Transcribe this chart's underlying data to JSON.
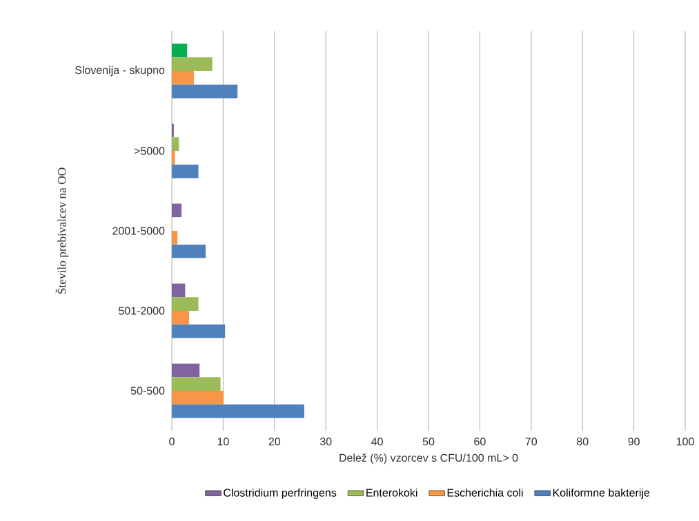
{
  "chart_data": {
    "type": "bar",
    "orientation": "horizontal",
    "xlabel": "Delež (%) vzorcev  s CFU/100 mL> 0",
    "ylabel": "Število prebivalcev na OO",
    "categories": [
      "Slovenija - skupno",
      ">5000",
      "2001-5000",
      "501-2000",
      "50-500"
    ],
    "series": [
      {
        "name": "Clostridium perfringens",
        "color": "#8064a2",
        "colors": [
          "#00b050",
          "#8064a2",
          "#8064a2",
          "#8064a2",
          "#8064a2"
        ],
        "values": [
          3.0,
          0.4,
          1.9,
          2.6,
          5.4
        ]
      },
      {
        "name": "Enterokoki",
        "color": "#9bbb59",
        "values": [
          7.9,
          1.4,
          0,
          5.2,
          9.5
        ]
      },
      {
        "name": "Escherichia coli",
        "color": "#f79646",
        "values": [
          4.3,
          0.6,
          1.1,
          3.4,
          10.1
        ]
      },
      {
        "name": "Koliformne bakterije",
        "color": "#4f81bd",
        "values": [
          12.8,
          5.2,
          6.6,
          10.4,
          25.8
        ]
      }
    ],
    "xlim": [
      0,
      100
    ],
    "xticks": [
      0,
      10,
      20,
      30,
      40,
      50,
      60,
      70,
      80,
      90,
      100
    ],
    "grid": "x",
    "legend": "bottom"
  }
}
